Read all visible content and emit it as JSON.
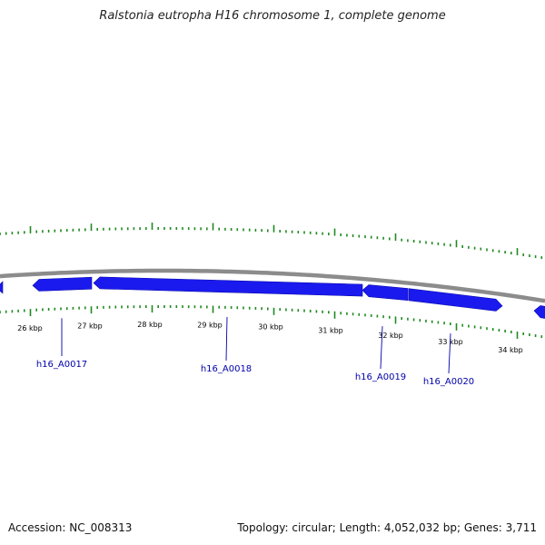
{
  "title": "Ralstonia eutropha H16 chromosome 1, complete genome",
  "footer": {
    "accession": "Accession: NC_008313",
    "summary": "Topology: circular; Length: 4,052,032 bp; Genes: 3,711"
  },
  "colors": {
    "backbone": "#8c8c8c",
    "gene": "#1a1aee",
    "ticks": "#1f8a1f",
    "label": "#0000aa"
  },
  "kbp_ticks": [
    "26 kbp",
    "27 kbp",
    "28 kbp",
    "29 kbp",
    "30 kbp",
    "31 kbp",
    "32 kbp",
    "33 kbp",
    "34 kbp"
  ],
  "genes": [
    {
      "label": "",
      "strand": "-"
    },
    {
      "label": "h16_A0017",
      "strand": "-"
    },
    {
      "label": "h16_A0018",
      "strand": "-"
    },
    {
      "label": "h16_A0019",
      "strand": "-"
    },
    {
      "label": "h16_A0020",
      "strand": "+"
    },
    {
      "label": "",
      "strand": "-"
    }
  ]
}
